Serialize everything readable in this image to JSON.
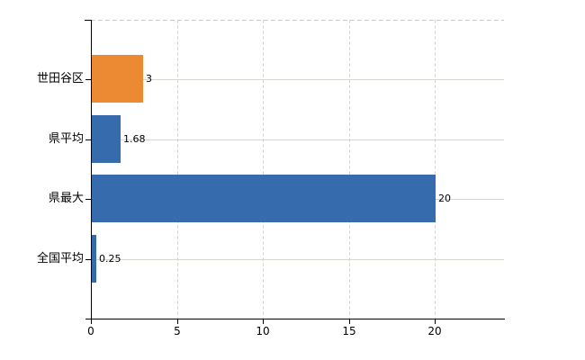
{
  "chart_data": {
    "type": "bar",
    "orientation": "horizontal",
    "title": "",
    "xlabel": "",
    "ylabel": "",
    "categories": [
      "世田谷区",
      "県平均",
      "県最大",
      "全国平均"
    ],
    "values": [
      3,
      1.68,
      20,
      0.25
    ],
    "value_labels": [
      "3",
      "1.68",
      "20",
      "0.25"
    ],
    "bar_colors": [
      "#EC8A33",
      "#366BAE",
      "#366BAE",
      "#366BAE"
    ],
    "x_ticks": [
      0,
      5,
      10,
      15,
      20
    ],
    "x_tick_labels": [
      "0",
      "5",
      "10",
      "15",
      "20"
    ],
    "xlim": [
      0,
      24
    ],
    "grid": true,
    "legend": false
  },
  "colors": {
    "background": "#ffffff",
    "axis": "#000000",
    "grid_vertical": "#d9d9d9",
    "grid_horizontal": "#d3d8d0",
    "plot_border_top": "#c9c9c9",
    "text": "#000000",
    "bar_orange": "#EC8A33",
    "bar_blue": "#366BAE"
  }
}
